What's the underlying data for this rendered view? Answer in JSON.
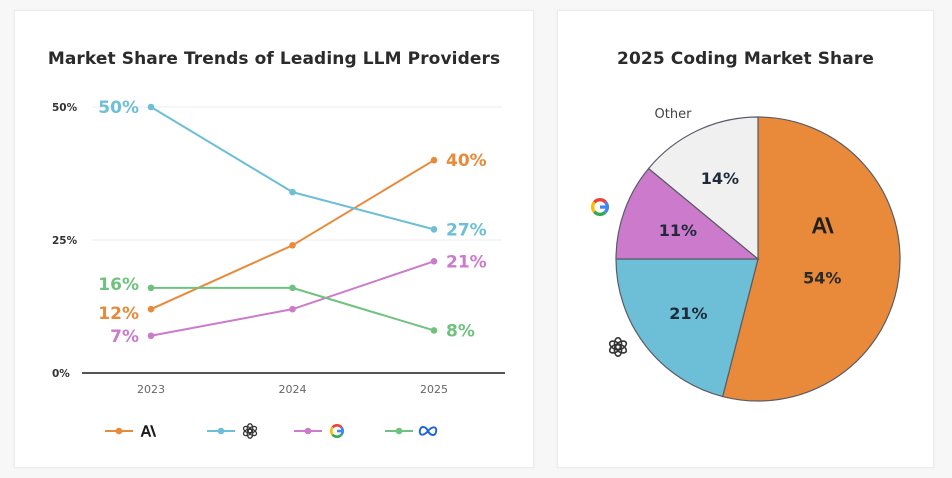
{
  "line_chart_panel": {
    "title": "Market Share Trends of Leading LLM Providers"
  },
  "pie_chart_panel": {
    "title": "2025 Coding Market Share"
  },
  "colors": {
    "anthropic": "#e88a3a",
    "openai": "#6cbfd6",
    "google": "#cc7acb",
    "meta": "#6fc27d",
    "other": "#f0f0f0",
    "axis": "#555555",
    "grid": "#eeeeee"
  },
  "chart_data": [
    {
      "type": "line",
      "title": "Market Share Trends of Leading LLM Providers",
      "xlabel": "",
      "ylabel": "",
      "x": [
        "2023",
        "2024",
        "2025"
      ],
      "ylim": [
        0,
        50
      ],
      "yticks": [
        0,
        25,
        50
      ],
      "ytick_labels": [
        "0%",
        "25%",
        "50%"
      ],
      "grid": true,
      "legend_position": "bottom",
      "series": [
        {
          "name": "Anthropic",
          "icon": "anthropic-logo-icon",
          "color_key": "anthropic",
          "values": [
            12,
            24,
            40
          ],
          "start_label": "12%",
          "end_label": "40%"
        },
        {
          "name": "OpenAI",
          "icon": "openai-logo-icon",
          "color_key": "openai",
          "values": [
            50,
            34,
            27
          ],
          "start_label": "50%",
          "end_label": "27%"
        },
        {
          "name": "Google",
          "icon": "google-logo-icon",
          "color_key": "google",
          "values": [
            7,
            12,
            21
          ],
          "start_label": "7%",
          "end_label": "21%"
        },
        {
          "name": "Meta",
          "icon": "meta-logo-icon",
          "color_key": "meta",
          "values": [
            16,
            16,
            8
          ],
          "start_label": "16%",
          "end_label": "8%"
        }
      ]
    },
    {
      "type": "pie",
      "title": "2025 Coding Market Share",
      "slices": [
        {
          "name": "Anthropic",
          "icon": "anthropic-logo-icon",
          "color_key": "anthropic",
          "value": 54,
          "label": "54%"
        },
        {
          "name": "OpenAI",
          "icon": "openai-logo-icon",
          "color_key": "openai",
          "value": 21,
          "label": "21%"
        },
        {
          "name": "Google",
          "icon": "google-logo-icon",
          "color_key": "google",
          "value": 11,
          "label": "11%"
        },
        {
          "name": "Other",
          "text_label": "Other",
          "color_key": "other",
          "value": 14,
          "label": "14%"
        }
      ]
    }
  ]
}
